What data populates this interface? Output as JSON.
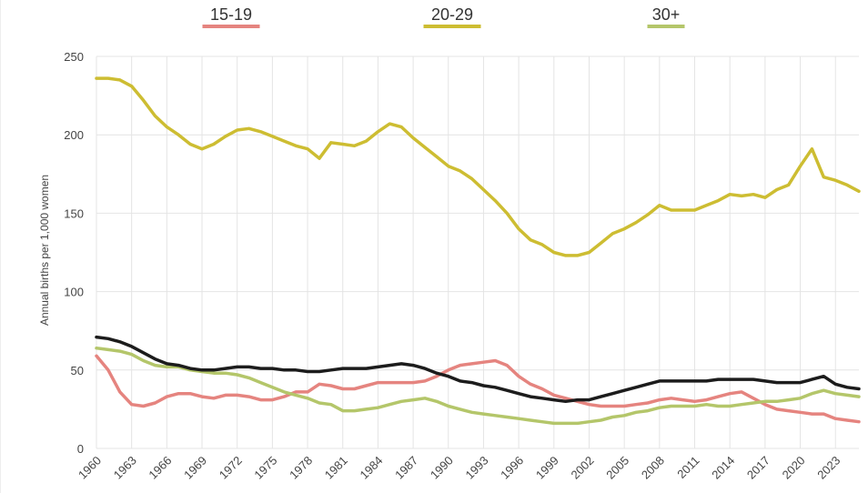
{
  "chart_data": {
    "type": "line",
    "title": "",
    "xlabel": "",
    "ylabel": "Annual births per 1,000 women",
    "ylim": [
      0,
      250
    ],
    "xlim": [
      1960,
      2025
    ],
    "yticks": [
      0,
      50,
      100,
      150,
      200,
      250
    ],
    "xticks": [
      1960,
      1963,
      1966,
      1969,
      1972,
      1975,
      1978,
      1981,
      1984,
      1987,
      1990,
      1993,
      1996,
      1999,
      2002,
      2005,
      2008,
      2011,
      2014,
      2017,
      2020,
      2023
    ],
    "grid": true,
    "legend_position": "top",
    "x": [
      1960,
      1961,
      1962,
      1963,
      1964,
      1965,
      1966,
      1967,
      1968,
      1969,
      1970,
      1971,
      1972,
      1973,
      1974,
      1975,
      1976,
      1977,
      1978,
      1979,
      1980,
      1981,
      1982,
      1983,
      1984,
      1985,
      1986,
      1987,
      1988,
      1989,
      1990,
      1991,
      1992,
      1993,
      1994,
      1995,
      1996,
      1997,
      1998,
      1999,
      2000,
      2001,
      2002,
      2003,
      2004,
      2005,
      2006,
      2007,
      2008,
      2009,
      2010,
      2011,
      2012,
      2013,
      2014,
      2015,
      2016,
      2017,
      2018,
      2019,
      2020,
      2021,
      2022,
      2023,
      2024,
      2025
    ],
    "series": [
      {
        "name": "15-19",
        "color": "#e5847f",
        "in_legend": true,
        "values": [
          59,
          50,
          36,
          28,
          27,
          29,
          33,
          35,
          35,
          33,
          32,
          34,
          34,
          33,
          31,
          31,
          33,
          36,
          36,
          41,
          40,
          38,
          38,
          40,
          42,
          42,
          42,
          42,
          43,
          46,
          50,
          53,
          54,
          55,
          56,
          53,
          46,
          41,
          38,
          34,
          32,
          30,
          28,
          27,
          27,
          27,
          28,
          29,
          31,
          32,
          31,
          30,
          31,
          33,
          35,
          36,
          32,
          28,
          25,
          24,
          23,
          22,
          22,
          19,
          18,
          17
        ]
      },
      {
        "name": "20-29",
        "color": "#cdbd32",
        "in_legend": true,
        "values": [
          236,
          236,
          235,
          231,
          222,
          212,
          205,
          200,
          194,
          191,
          194,
          199,
          203,
          204,
          202,
          199,
          196,
          193,
          191,
          185,
          195,
          194,
          193,
          196,
          202,
          207,
          205,
          198,
          192,
          186,
          180,
          177,
          172,
          165,
          158,
          150,
          140,
          133,
          130,
          125,
          123,
          123,
          125,
          131,
          137,
          140,
          144,
          149,
          155,
          152,
          152,
          152,
          155,
          158,
          162,
          161,
          162,
          160,
          165,
          168,
          180,
          191,
          173,
          171,
          168,
          164
        ]
      },
      {
        "name": "30+",
        "color": "#b4c66a",
        "in_legend": true,
        "values": [
          64,
          63,
          62,
          60,
          56,
          53,
          52,
          52,
          50,
          49,
          48,
          48,
          47,
          45,
          42,
          39,
          36,
          34,
          32,
          29,
          28,
          24,
          24,
          25,
          26,
          28,
          30,
          31,
          32,
          30,
          27,
          25,
          23,
          22,
          21,
          20,
          19,
          18,
          17,
          16,
          16,
          16,
          17,
          18,
          20,
          21,
          23,
          24,
          26,
          27,
          27,
          27,
          28,
          27,
          27,
          28,
          29,
          30,
          30,
          31,
          32,
          35,
          37,
          35,
          34,
          33
        ]
      },
      {
        "name": "",
        "color": "#1c1c1c",
        "in_legend": false,
        "values": [
          71,
          70,
          68,
          65,
          61,
          57,
          54,
          53,
          51,
          50,
          50,
          51,
          52,
          52,
          51,
          51,
          50,
          50,
          49,
          49,
          50,
          51,
          51,
          51,
          52,
          53,
          54,
          53,
          51,
          48,
          46,
          43,
          42,
          40,
          39,
          37,
          35,
          33,
          32,
          31,
          30,
          31,
          31,
          33,
          35,
          37,
          39,
          41,
          43,
          43,
          43,
          43,
          43,
          44,
          44,
          44,
          44,
          43,
          42,
          42,
          42,
          44,
          46,
          41,
          39,
          38
        ]
      }
    ]
  }
}
